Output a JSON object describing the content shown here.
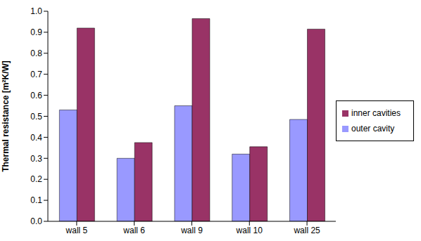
{
  "chart_data": {
    "type": "bar",
    "categories": [
      "wall 5",
      "wall 6",
      "wall 9",
      "wall 10",
      "wall 25"
    ],
    "y_label": "Thermal resistance [m²K/W]",
    "series": [
      {
        "name": "outer cavity",
        "color": "#9999ff",
        "values": [
          0.53,
          0.3,
          0.55,
          0.32,
          0.485
        ]
      },
      {
        "name": "inner cavities",
        "color": "#993366",
        "values": [
          0.92,
          0.375,
          0.965,
          0.355,
          0.915
        ]
      }
    ],
    "ylim": [
      0,
      1
    ],
    "yticks": [
      {
        "value": 0,
        "label": "0.0"
      },
      0.1,
      0.2,
      0.3,
      0.4,
      0.5,
      0.6,
      0.7,
      0.8,
      0.9,
      {
        "value": 1,
        "label": "1.0"
      }
    ],
    "grid": false,
    "legend": "right"
  }
}
